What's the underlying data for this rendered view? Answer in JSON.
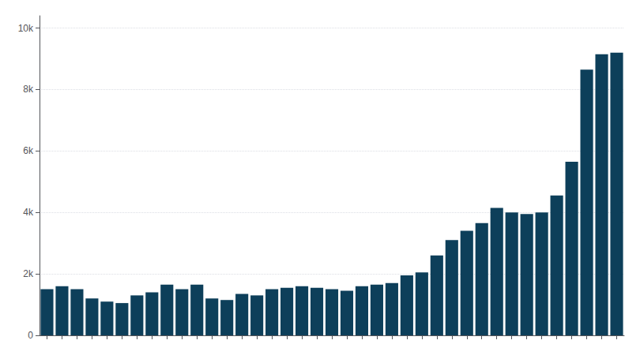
{
  "chart_data": {
    "type": "bar",
    "categories": [
      null,
      null,
      null,
      null,
      null,
      null,
      null,
      null,
      null,
      null,
      null,
      null,
      null,
      null,
      null,
      null,
      null,
      null,
      null,
      null,
      null,
      null,
      null,
      null,
      null,
      null,
      null,
      null,
      null,
      null,
      null,
      null,
      null,
      null,
      null,
      null,
      null,
      null,
      null
    ],
    "values": [
      1500,
      1600,
      1500,
      1200,
      1100,
      1050,
      1300,
      1400,
      1650,
      1500,
      1650,
      1200,
      1150,
      1350,
      1300,
      1500,
      1550,
      1600,
      1550,
      1500,
      1450,
      1600,
      1650,
      1700,
      1950,
      2050,
      2600,
      3100,
      3400,
      3650,
      4150,
      4000,
      3950,
      4000,
      4550,
      5650,
      8650,
      9150,
      9200
    ],
    "color": "#0d3f5a",
    "ylim": [
      0,
      10400
    ],
    "yticks": [
      0,
      {
        "value": 2000,
        "label": "2k"
      },
      {
        "value": 4000,
        "label": "4k"
      },
      {
        "value": 6000,
        "label": "6k"
      },
      {
        "value": 8000,
        "label": "8k"
      },
      {
        "value": 10000,
        "label": "10k"
      }
    ],
    "grid": true,
    "tick_labels": "y"
  }
}
